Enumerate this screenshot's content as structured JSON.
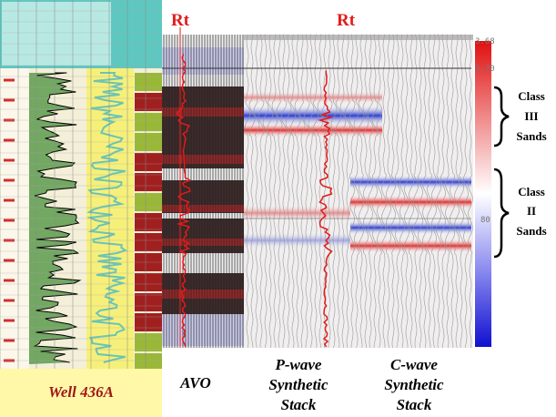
{
  "header_labels": {
    "rt_avo": "Rt",
    "rt_pwave": "Rt"
  },
  "well": {
    "label": "Well 436A"
  },
  "panels": {
    "avo": "AVO",
    "p_wave": [
      "P-wave",
      "Synthetic",
      "Stack"
    ],
    "c_wave": [
      "C-wave",
      "Synthetic",
      "Stack"
    ]
  },
  "time_labels": [
    "3.68",
    "3.70",
    "80"
  ],
  "annotations": {
    "class_iii": [
      "Class",
      "III",
      "Sands"
    ],
    "class_ii": [
      "Class",
      "II",
      "Sands"
    ]
  }
}
